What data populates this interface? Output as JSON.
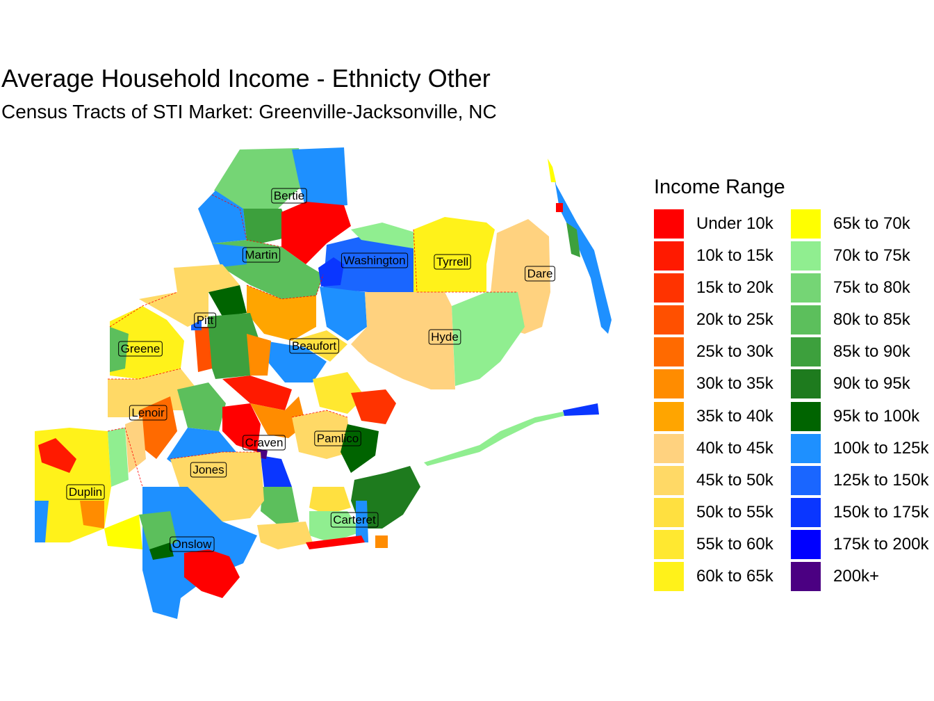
{
  "title": "Average Household Income - Ethnicty Other",
  "subtitle": "Census Tracts of STI Market: Greenville-Jacksonville, NC",
  "legend": {
    "title": "Income Range",
    "items": [
      {
        "label": "Under 10k",
        "color": "#FF0000"
      },
      {
        "label": "10k to 15k",
        "color": "#FF1A00"
      },
      {
        "label": "15k to 20k",
        "color": "#FF3300"
      },
      {
        "label": "20k to 25k",
        "color": "#FF5000"
      },
      {
        "label": "25k to 30k",
        "color": "#FF6A00"
      },
      {
        "label": "30k to 35k",
        "color": "#FF8C00"
      },
      {
        "label": "35k to 40k",
        "color": "#FFA500"
      },
      {
        "label": "40k to 45k",
        "color": "#FFD27F"
      },
      {
        "label": "45k to 50k",
        "color": "#FFD966"
      },
      {
        "label": "50k to 55k",
        "color": "#FFE040"
      },
      {
        "label": "55k to 60k",
        "color": "#FFE830"
      },
      {
        "label": "60k to 65k",
        "color": "#FFF21A"
      },
      {
        "label": "65k to 70k",
        "color": "#FFFF00"
      },
      {
        "label": "70k to 75k",
        "color": "#90EE90"
      },
      {
        "label": "75k to 80k",
        "color": "#75D575"
      },
      {
        "label": "80k to 85k",
        "color": "#5CBF5C"
      },
      {
        "label": "85k to 90k",
        "color": "#3DA03D"
      },
      {
        "label": "90k to 95k",
        "color": "#1E7B1E"
      },
      {
        "label": "95k to 100k",
        "color": "#006400"
      },
      {
        "label": "100k to 125k",
        "color": "#1E90FF"
      },
      {
        "label": "125k to 150k",
        "color": "#1A66FF"
      },
      {
        "label": "150k to 175k",
        "color": "#0A36FF"
      },
      {
        "label": "175k to 200k",
        "color": "#0000FF"
      },
      {
        "label": "200k+",
        "color": "#4B0082"
      }
    ]
  },
  "counties": [
    "Bertie",
    "Martin",
    "Washington",
    "Tyrrell",
    "Dare",
    "Pitt",
    "Greene",
    "Beaufort",
    "Hyde",
    "Lenoir",
    "Craven",
    "Pamlico",
    "Jones",
    "Duplin",
    "Carteret",
    "Onslow"
  ]
}
